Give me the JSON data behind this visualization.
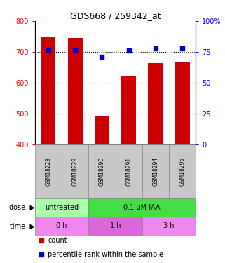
{
  "title": "GDS668 / 259342_at",
  "samples": [
    "GSM18228",
    "GSM18229",
    "GSM18290",
    "GSM18291",
    "GSM18294",
    "GSM18295"
  ],
  "bar_values": [
    748,
    745,
    492,
    620,
    663,
    668
  ],
  "percentile_values": [
    76,
    76,
    71,
    76,
    78,
    78
  ],
  "bar_color": "#cc0000",
  "dot_color": "#0000cc",
  "ylim_left": [
    400,
    800
  ],
  "ylim_right": [
    0,
    100
  ],
  "yticks_left": [
    400,
    500,
    600,
    700,
    800
  ],
  "yticks_right": [
    0,
    25,
    50,
    75,
    100
  ],
  "dose_labels": [
    {
      "label": "untreated",
      "span": [
        0,
        2
      ],
      "color": "#aaffaa"
    },
    {
      "label": "0.1 uM IAA",
      "span": [
        2,
        6
      ],
      "color": "#44dd44"
    }
  ],
  "time_labels": [
    {
      "label": "0 h",
      "span": [
        0,
        2
      ],
      "color": "#ee88ee"
    },
    {
      "label": "1 h",
      "span": [
        2,
        4
      ],
      "color": "#dd66dd"
    },
    {
      "label": "3 h",
      "span": [
        4,
        6
      ],
      "color": "#ee88ee"
    }
  ],
  "legend_count_color": "#cc0000",
  "legend_dot_color": "#0000cc",
  "legend_count_label": "count",
  "legend_dot_label": "percentile rank within the sample",
  "bar_width": 0.55,
  "grid_color": "black",
  "bg_color": "#ffffff",
  "sample_box_color": "#c8c8c8"
}
